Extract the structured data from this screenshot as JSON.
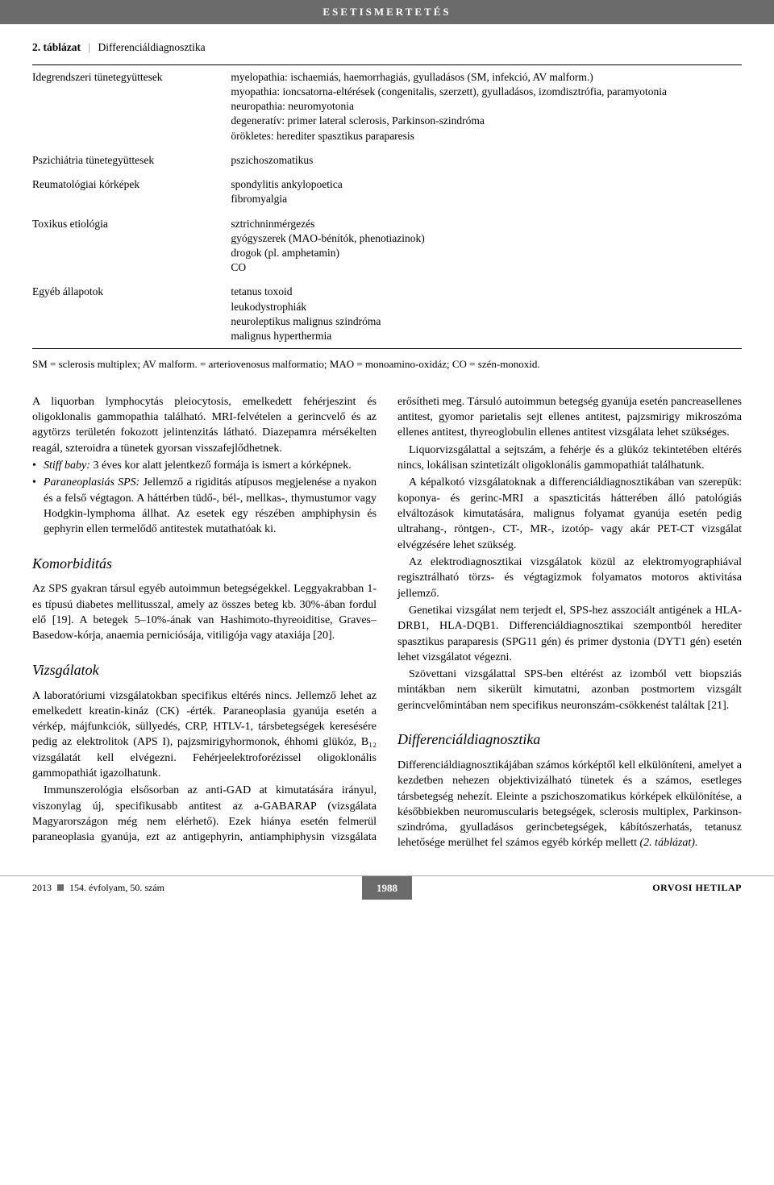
{
  "header": {
    "banner": "ESETISMERTETÉS"
  },
  "table": {
    "caption_num": "2. táblázat",
    "caption_title": "Differenciáldiagnosztika",
    "rows": [
      {
        "left": "Idegrendszeri tünetegyüttesek",
        "right": [
          "myelopathia: ischaemiás, haemorrhagiás, gyulladásos (SM, infekció, AV malform.)",
          "myopathia: ioncsatorna-eltérések (congenitalis, szerzett), gyulladásos, izomdisztrófia, paramyotonia",
          "neuropathia: neuromyotonia",
          "degeneratív: primer lateral sclerosis, Parkinson-szindróma",
          "örökletes: herediter spasztikus paraparesis"
        ]
      },
      {
        "left": "Pszichiátria tünetegyüttesek",
        "right": [
          "pszichoszomatikus"
        ]
      },
      {
        "left": "Reumatológiai kórképek",
        "right": [
          "spondylitis ankylopoetica",
          "fibromyalgia"
        ]
      },
      {
        "left": "Toxikus etiológia",
        "right": [
          "sztrichninmérgezés",
          "gyógyszerek (MAO-bénítók, phenotiazinok)",
          "drogok (pl. amphetamin)",
          "CO"
        ]
      },
      {
        "left": "Egyéb állapotok",
        "right": [
          "tetanus toxoid",
          "leukodystrophiák",
          "neuroleptikus malignus szindróma",
          "malignus hyperthermia"
        ]
      }
    ],
    "footnote": "SM = sclerosis multiplex; AV malform. = arteriovenosus malformatio; MAO = monoamino-oxidáz; CO = szén-monoxid."
  },
  "body": {
    "p1": "A liquorban lymphocytás pleiocytosis, emelkedett fehérjeszint és oligoklonalis gammopathia található. MRI-felvételen a gerincvelő és az agytörzs területén fokozott jelintenzitás látható. Diazepamra mérsékelten reagál, szteroidra a tünetek gyorsan visszafejlődhetnek.",
    "li1_label": "Stiff baby:",
    "li1": " 3 éves kor alatt jelentkező formája is ismert a kórképnek.",
    "li2_label": "Paraneoplasiás SPS:",
    "li2": " Jellemző a rigiditás atípusos megjelenése a nyakon és a felső végtagon. A háttérben tüdő-, bél-, mellkas-, thymustumor vagy Hodgkin-lymphoma állhat. Az esetek egy részében amphiphysin és gephyrin ellen termelődő antitestek mutathatóak ki.",
    "h_komorb": "Komorbiditás",
    "p_komorb": "Az SPS gyakran társul egyéb autoimmun betegségekkel. Leggyakrabban 1-es típusú diabetes mellitusszal, amely az összes beteg kb. 30%-ában fordul elő [19]. A betegek 5–10%-ának van Hashimoto-thyreoiditise, Graves–Basedow-kórja, anaemia perniciósája, vitiligója vagy ataxiája [20].",
    "h_vizsg": "Vizsgálatok",
    "p_vizsg1": "A laboratóriumi vizsgálatokban specifikus eltérés nincs. Jellemző lehet az emelkedett kreatin-kináz (CK) -érték. Paraneoplasia gyanúja esetén a vérkép, májfunkciók, süllyedés, CRP, HTLV-1, társbetegségek keresésére pedig az elektrolitok (APS I), pajzsmirigyhormonok, éhhomi glükóz, B₁₂ vizsgálatát kell elvégezni. Fehérjeelektroforézissel oligoklonális gammopathiát igazolhatunk.",
    "p_vizsg2": "Immunszerológia elsősorban az anti-GAD at kimutatására irányul, viszonylag új, specifikusabb antitest az a-GABARAP (vizsgálata Magyarországon még nem elérhető). Ezek hiánya esetén felmerül paraneoplasia gyanúja, ezt az antigephyrin, antiamphiphysin vizsgálata erősítheti meg. Társuló autoimmun betegség gyanúja esetén pancreasellenes antitest, gyomor parietalis sejt ellenes antitest, pajzsmirigy mikroszóma ellenes antitest, thyreoglobulin ellenes antitest vizsgálata lehet szükséges.",
    "p_liquor": "Liquorvizsgálattal a sejtszám, a fehérje és a glükóz tekintetében eltérés nincs, lokálisan szintetizált oligoklonális gammopathiát találhatunk.",
    "p_kepalk": "A képalkotó vizsgálatoknak a differenciáldiagnosztikában van szerepük: koponya- és gerinc-MRI a spaszticitás hátterében álló patológiás elváltozások kimutatására, malignus folyamat gyanúja esetén pedig ultrahang-, röntgen-, CT-, MR-, izotóp- vagy akár PET-CT vizsgálat elvégzésére lehet szükség.",
    "p_emg": "Az elektrodiagnosztikai vizsgálatok közül az elektromyographiával regisztrálható törzs- és végtagizmok folyamatos motoros aktivitása jellemző.",
    "p_genet": "Genetikai vizsgálat nem terjedt el, SPS-hez asszociált antigének a HLA-DRB1, HLA-DQB1. Differenciáldiagnosztikai szempontból herediter spasztikus paraparesis (SPG11 gén) és primer dystonia (DYT1 gén) esetén lehet vizsgálatot végezni.",
    "p_szovet": "Szövettani vizsgálattal SPS-ben eltérést az izomból vett biopsziás mintákban nem sikerült kimutatni, azonban postmortem vizsgált gerincvelőmintában nem specifikus neuronszám-csökkenést találtak [21].",
    "h_diff": "Differenciáldiagnosztika",
    "p_diff1": "Differenciáldiagnosztikájában számos kórképtől kell elkülöníteni, amelyet a kezdetben nehezen objektivizálható tünetek és a számos, esetleges társbetegség nehezít. Eleinte a pszichoszomatikus kórképek elkülönítése, a későbbiekben neuromuscularis betegségek, sclerosis multiplex, Parkinson-szindróma, gyulladásos gerincbetegségek, kábítószerhatás, tetanusz lehetősége merülhet fel számos egyéb kórkép mellett ",
    "p_diff1_ref": "(2. táblázat)."
  },
  "footer": {
    "left_year": "2013",
    "left_vol": "154. évfolyam, 50. szám",
    "page": "1988",
    "right": "ORVOSI HETILAP"
  }
}
